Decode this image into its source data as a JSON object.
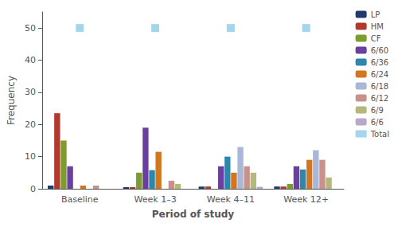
{
  "chart_data": {
    "type": "bar",
    "xlabel": "Period of study",
    "ylabel": "Frequency",
    "categories": [
      "Baseline",
      "Week 1–3",
      "Week 4–11",
      "Week 12+"
    ],
    "series": [
      {
        "name": "LP",
        "color": "#1f3a6e",
        "values": [
          1,
          0.5,
          0.7,
          0.7
        ]
      },
      {
        "name": "HM",
        "color": "#b03a2e",
        "values": [
          23.5,
          0.5,
          0.7,
          0.7
        ]
      },
      {
        "name": "CF",
        "color": "#7d9c2e",
        "values": [
          15,
          5,
          0,
          1.5
        ]
      },
      {
        "name": "6/60",
        "color": "#6b3fa0",
        "values": [
          7,
          19,
          7,
          7
        ]
      },
      {
        "name": "6/36",
        "color": "#2e86ab",
        "values": [
          0,
          5.8,
          10,
          6
        ]
      },
      {
        "name": "6/24",
        "color": "#d4761e",
        "values": [
          1,
          11.5,
          5,
          9
        ]
      },
      {
        "name": "6/18",
        "color": "#a8b8d8",
        "values": [
          0,
          0,
          13,
          12
        ]
      },
      {
        "name": "6/12",
        "color": "#c9918a",
        "values": [
          1,
          2.5,
          7,
          9
        ]
      },
      {
        "name": "6/9",
        "color": "#b5b87a",
        "values": [
          0,
          1.5,
          5,
          3.5
        ]
      },
      {
        "name": "6/6",
        "color": "#b8a8cc",
        "values": [
          0,
          0,
          0.6,
          0
        ]
      },
      {
        "name": "Total",
        "type": "scatter",
        "marker": "square",
        "color": "#8ecae6",
        "values": [
          50,
          50,
          50,
          50
        ]
      }
    ],
    "ylim": [
      0,
      55
    ],
    "yticks": [
      0,
      10,
      20,
      30,
      40,
      50
    ],
    "grid": false,
    "legend": "right"
  }
}
